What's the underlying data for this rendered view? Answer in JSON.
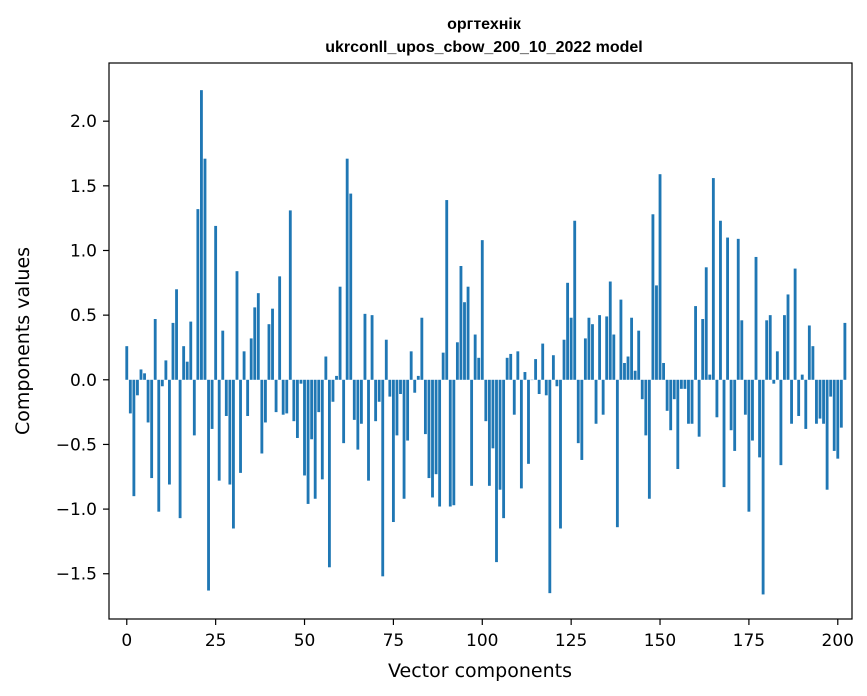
{
  "chart_data": {
    "type": "bar",
    "title_line1": "оргтехнік",
    "title_line2": "ukrconll_upos_cbow_200_10_2022 model",
    "xlabel": "Vector components",
    "ylabel": "Components values",
    "xlim": [
      -5,
      204
    ],
    "ylim": [
      -1.85,
      2.45
    ],
    "xticks": [
      0,
      25,
      50,
      75,
      100,
      125,
      150,
      175,
      200
    ],
    "xtick_labels": [
      "0",
      "25",
      "50",
      "75",
      "100",
      "125",
      "150",
      "175",
      "200"
    ],
    "yticks": [
      -1.5,
      -1.0,
      -0.5,
      0.0,
      0.5,
      1.0,
      1.5,
      2.0
    ],
    "ytick_labels": [
      "−1.5",
      "−1.0",
      "−0.5",
      "0.0",
      "0.5",
      "1.0",
      "1.5",
      "2.0"
    ],
    "bar_color": "#1f77b4",
    "values": [
      0.26,
      -0.26,
      -0.9,
      -0.12,
      0.08,
      0.05,
      -0.33,
      -0.76,
      0.47,
      -1.02,
      -0.05,
      0.15,
      -0.81,
      0.44,
      0.7,
      -1.07,
      0.26,
      0.14,
      0.45,
      -0.43,
      1.32,
      2.24,
      1.71,
      -1.63,
      -0.38,
      1.19,
      -0.78,
      0.38,
      -0.28,
      -0.81,
      -1.15,
      0.84,
      -0.72,
      0.22,
      -0.28,
      0.32,
      0.56,
      0.67,
      -0.57,
      -0.33,
      0.43,
      0.55,
      -0.25,
      0.8,
      -0.27,
      -0.26,
      1.31,
      -0.32,
      -0.45,
      -0.03,
      -0.74,
      -0.96,
      -0.46,
      -0.92,
      -0.25,
      -0.77,
      0.18,
      -1.45,
      -0.17,
      0.03,
      0.72,
      -0.49,
      1.71,
      1.44,
      -0.31,
      -0.54,
      -0.34,
      0.51,
      -0.78,
      0.5,
      -0.32,
      -0.17,
      -1.52,
      0.31,
      -0.13,
      -1.1,
      -0.43,
      -0.11,
      -0.92,
      -0.47,
      0.22,
      -0.1,
      0.03,
      0.48,
      -0.42,
      -0.76,
      -0.91,
      -0.73,
      -0.98,
      0.21,
      1.39,
      -0.98,
      -0.97,
      0.29,
      0.88,
      0.6,
      0.72,
      -0.82,
      0.35,
      0.17,
      1.08,
      -0.32,
      -0.82,
      -0.53,
      -1.41,
      -0.85,
      -1.07,
      0.17,
      0.2,
      -0.27,
      0.22,
      -0.84,
      0.06,
      -0.65,
      0.0,
      0.16,
      -0.11,
      0.28,
      -0.12,
      -1.65,
      0.19,
      -0.05,
      -1.15,
      0.31,
      0.75,
      0.48,
      1.23,
      -0.49,
      -0.62,
      0.32,
      0.48,
      0.43,
      -0.34,
      0.5,
      -0.27,
      0.49,
      0.76,
      0.35,
      -1.14,
      0.62,
      0.13,
      0.18,
      0.48,
      0.07,
      0.38,
      -0.15,
      -0.43,
      -0.92,
      1.28,
      0.73,
      1.59,
      0.13,
      -0.24,
      -0.39,
      -0.15,
      -0.69,
      -0.07,
      -0.07,
      -0.34,
      -0.34,
      0.57,
      -0.44,
      0.47,
      0.87,
      0.04,
      1.56,
      -0.29,
      1.23,
      -0.83,
      1.1,
      -0.39,
      -0.55,
      1.09,
      0.46,
      -0.27,
      -1.02,
      -0.47,
      0.95,
      -0.6,
      -1.66,
      0.46,
      0.5,
      -0.03,
      0.22,
      -0.66,
      0.5,
      0.66,
      -0.34,
      0.86,
      -0.28,
      0.04,
      -0.38,
      0.42,
      0.26,
      -0.34,
      -0.3,
      -0.34,
      -0.85,
      -0.13,
      -0.55,
      -0.61,
      -0.37,
      0.44
    ]
  }
}
